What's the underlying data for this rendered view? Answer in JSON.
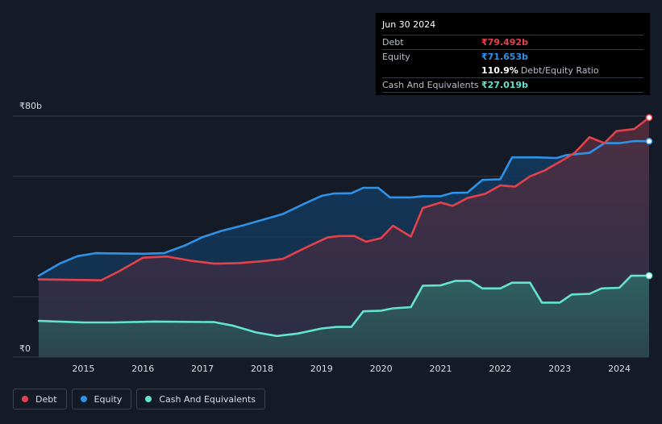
{
  "colors": {
    "debt": "#e5414b",
    "equity": "#2e93e8",
    "cash": "#64e3cf",
    "grid": "#323a47",
    "axis_text": "#d9dde4"
  },
  "tooltip": {
    "date": "Jun 30 2024",
    "debt_label": "Debt",
    "debt_value": "₹79.492b",
    "equity_label": "Equity",
    "equity_value": "₹71.653b",
    "ratio_value": "110.9%",
    "ratio_label": "Debt/Equity Ratio",
    "cash_label": "Cash And Equivalents",
    "cash_value": "₹27.019b"
  },
  "legend": [
    {
      "label": "Debt",
      "color": "#e5414b"
    },
    {
      "label": "Equity",
      "color": "#2e93e8"
    },
    {
      "label": "Cash And Equivalents",
      "color": "#64e3cf"
    }
  ],
  "chart_data": {
    "type": "area",
    "y_unit": "₹ billions",
    "ylim": [
      0,
      80
    ],
    "y_tick_labels": [
      {
        "value": 80,
        "label": "₹80b"
      },
      {
        "value": 0,
        "label": "₹0"
      }
    ],
    "gridlines": [
      0,
      20,
      40,
      60,
      80
    ],
    "xlim": [
      2014.2,
      2024.5
    ],
    "x_ticks": [
      2015,
      2016,
      2017,
      2018,
      2019,
      2020,
      2021,
      2022,
      2023,
      2024
    ],
    "legend_position": "bottom-left",
    "series": [
      {
        "name": "Equity",
        "key": "equity",
        "points": [
          [
            2014.25,
            27.0
          ],
          [
            2014.6,
            31.0
          ],
          [
            2014.9,
            33.5
          ],
          [
            2015.2,
            34.5
          ],
          [
            2016.0,
            34.3
          ],
          [
            2016.35,
            34.5
          ],
          [
            2016.7,
            37.0
          ],
          [
            2017.0,
            39.8
          ],
          [
            2017.3,
            41.8
          ],
          [
            2017.7,
            43.8
          ],
          [
            2018.0,
            45.5
          ],
          [
            2018.35,
            47.5
          ],
          [
            2018.7,
            50.8
          ],
          [
            2019.0,
            53.5
          ],
          [
            2019.2,
            54.3
          ],
          [
            2019.5,
            54.4
          ],
          [
            2019.7,
            56.2
          ],
          [
            2019.95,
            56.2
          ],
          [
            2020.15,
            53.0
          ],
          [
            2020.5,
            53.0
          ],
          [
            2020.7,
            53.4
          ],
          [
            2021.0,
            53.4
          ],
          [
            2021.2,
            54.5
          ],
          [
            2021.45,
            54.6
          ],
          [
            2021.7,
            58.8
          ],
          [
            2022.0,
            59.0
          ],
          [
            2022.2,
            66.3
          ],
          [
            2022.6,
            66.3
          ],
          [
            2022.95,
            66.1
          ],
          [
            2023.1,
            67.0
          ],
          [
            2023.5,
            67.8
          ],
          [
            2023.75,
            71.0
          ],
          [
            2024.0,
            71.0
          ],
          [
            2024.25,
            71.7
          ],
          [
            2024.5,
            71.65
          ]
        ]
      },
      {
        "name": "Debt",
        "key": "debt",
        "points": [
          [
            2014.25,
            25.8
          ],
          [
            2015.3,
            25.5
          ],
          [
            2015.6,
            28.5
          ],
          [
            2016.0,
            33.0
          ],
          [
            2016.4,
            33.4
          ],
          [
            2016.8,
            32.0
          ],
          [
            2017.2,
            31.0
          ],
          [
            2017.6,
            31.2
          ],
          [
            2018.0,
            31.8
          ],
          [
            2018.35,
            32.6
          ],
          [
            2018.7,
            36.0
          ],
          [
            2019.1,
            39.7
          ],
          [
            2019.3,
            40.2
          ],
          [
            2019.55,
            40.2
          ],
          [
            2019.75,
            38.3
          ],
          [
            2020.0,
            39.5
          ],
          [
            2020.2,
            43.6
          ],
          [
            2020.5,
            40.0
          ],
          [
            2020.7,
            49.5
          ],
          [
            2021.0,
            51.3
          ],
          [
            2021.2,
            50.2
          ],
          [
            2021.45,
            52.8
          ],
          [
            2021.75,
            54.2
          ],
          [
            2022.0,
            57.0
          ],
          [
            2022.25,
            56.6
          ],
          [
            2022.5,
            60.0
          ],
          [
            2022.75,
            62.0
          ],
          [
            2023.0,
            64.8
          ],
          [
            2023.25,
            67.8
          ],
          [
            2023.5,
            73.0
          ],
          [
            2023.75,
            71.0
          ],
          [
            2023.95,
            75.0
          ],
          [
            2024.25,
            75.7
          ],
          [
            2024.5,
            79.49
          ]
        ]
      },
      {
        "name": "Cash And Equivalents",
        "key": "cash",
        "points": [
          [
            2014.25,
            12.0
          ],
          [
            2015.0,
            11.5
          ],
          [
            2015.5,
            11.5
          ],
          [
            2016.2,
            11.8
          ],
          [
            2017.2,
            11.6
          ],
          [
            2017.5,
            10.5
          ],
          [
            2017.9,
            8.2
          ],
          [
            2018.25,
            7.0
          ],
          [
            2018.6,
            7.8
          ],
          [
            2019.0,
            9.5
          ],
          [
            2019.25,
            10.0
          ],
          [
            2019.5,
            10.0
          ],
          [
            2019.7,
            15.2
          ],
          [
            2020.0,
            15.4
          ],
          [
            2020.2,
            16.2
          ],
          [
            2020.5,
            16.6
          ],
          [
            2020.7,
            23.7
          ],
          [
            2021.0,
            23.8
          ],
          [
            2021.25,
            25.3
          ],
          [
            2021.5,
            25.3
          ],
          [
            2021.7,
            22.8
          ],
          [
            2022.0,
            22.8
          ],
          [
            2022.2,
            24.7
          ],
          [
            2022.5,
            24.7
          ],
          [
            2022.7,
            18.1
          ],
          [
            2023.0,
            18.1
          ],
          [
            2023.2,
            20.8
          ],
          [
            2023.5,
            21.0
          ],
          [
            2023.7,
            22.8
          ],
          [
            2024.0,
            23.0
          ],
          [
            2024.2,
            27.0
          ],
          [
            2024.5,
            27.02
          ]
        ]
      }
    ]
  }
}
